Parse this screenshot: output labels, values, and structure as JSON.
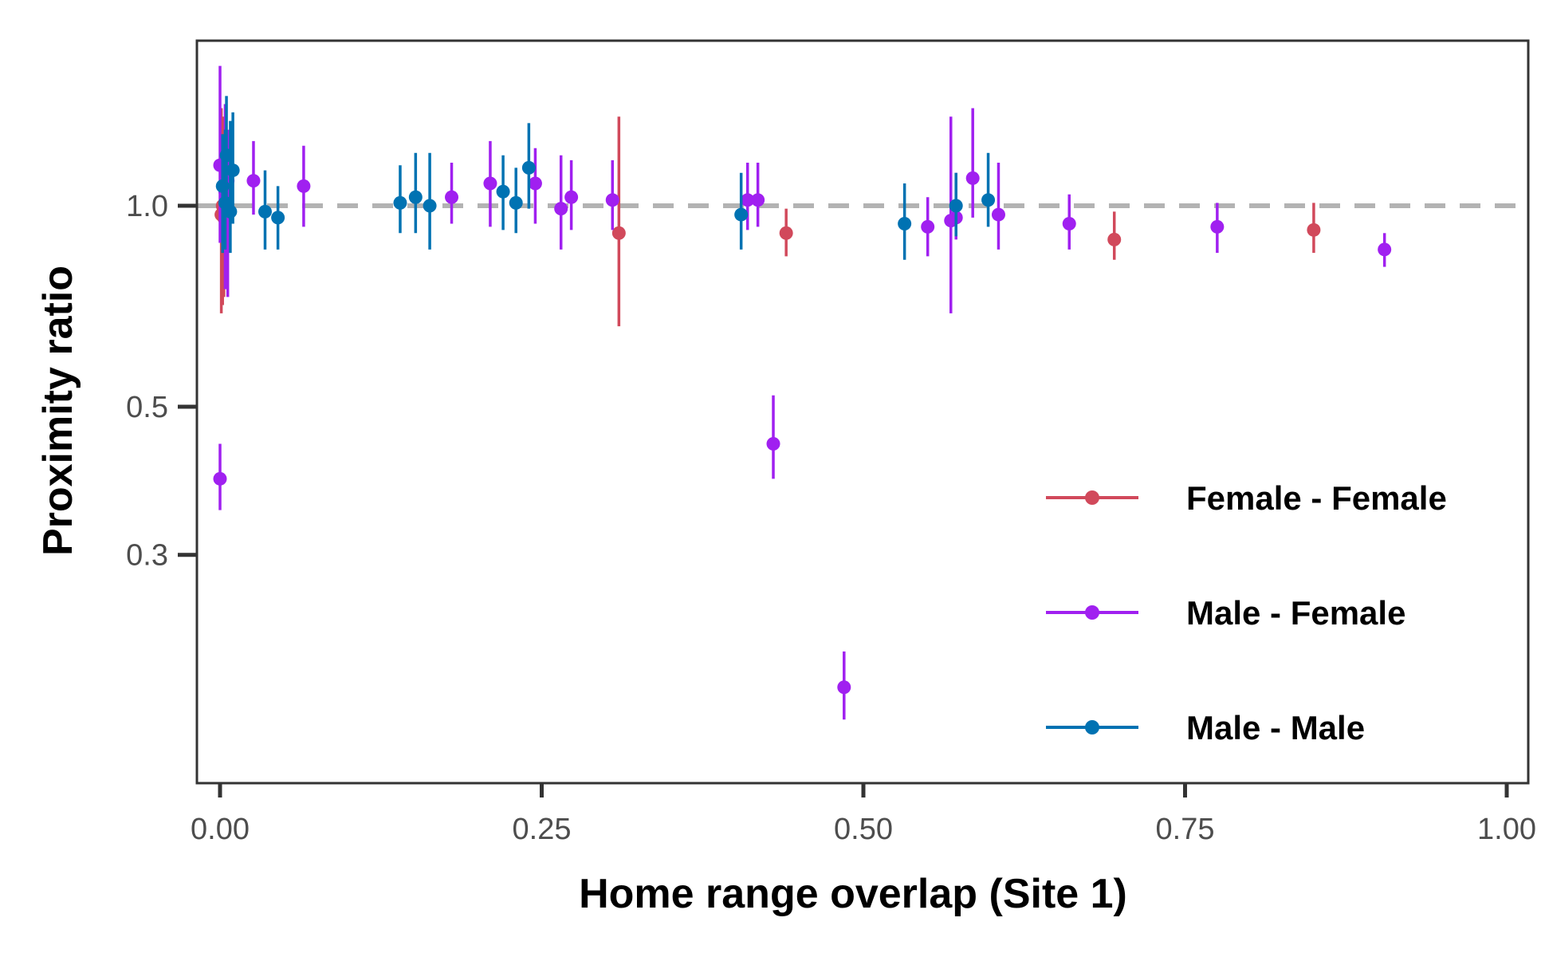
{
  "chart_data": {
    "type": "scatter",
    "xlabel": "Home range overlap (Site 1)",
    "ylabel": "Proximity ratio",
    "xlim": [
      0,
      1
    ],
    "y_scale": "log",
    "ylim": [
      0.15,
      1.85
    ],
    "x_ticks": [
      {
        "value": 0,
        "label": "0.00"
      },
      {
        "value": 0.25,
        "label": "0.25"
      },
      {
        "value": 0.5,
        "label": "0.50"
      },
      {
        "value": 0.75,
        "label": "0.75"
      },
      {
        "value": 1,
        "label": "1.00"
      }
    ],
    "y_ticks": [
      {
        "value": 1.0,
        "label": "1.0"
      },
      {
        "value": 0.5,
        "label": "0.5"
      },
      {
        "value": 0.3,
        "label": "0.3"
      }
    ],
    "reference_line": {
      "y": 1.0,
      "style": "dashed",
      "color": "#b3b3b3"
    },
    "grid": false,
    "legend_position": "bottom-right",
    "series": [
      {
        "name": "Female - Female",
        "color": "#d1495b",
        "points": [
          {
            "x": 0.001,
            "y": 0.97,
            "lo": 0.69,
            "hi": 1.4
          },
          {
            "x": 0.002,
            "y": 1.0,
            "lo": 0.71,
            "hi": 1.36
          },
          {
            "x": 0.003,
            "y": 0.96,
            "lo": 0.73,
            "hi": 1.3
          },
          {
            "x": 0.31,
            "y": 0.91,
            "lo": 0.66,
            "hi": 1.36
          },
          {
            "x": 0.44,
            "y": 0.91,
            "lo": 0.84,
            "hi": 0.99
          },
          {
            "x": 0.695,
            "y": 0.89,
            "lo": 0.83,
            "hi": 0.98
          },
          {
            "x": 0.85,
            "y": 0.92,
            "lo": 0.85,
            "hi": 1.01
          }
        ]
      },
      {
        "name": "Male - Female",
        "color": "#a020f0",
        "points": [
          {
            "x": 0.0,
            "y": 1.15,
            "lo": 0.88,
            "hi": 1.62
          },
          {
            "x": 0.0,
            "y": 0.39,
            "lo": 0.35,
            "hi": 0.44
          },
          {
            "x": 0.004,
            "y": 1.05,
            "lo": 0.75,
            "hi": 1.42
          },
          {
            "x": 0.006,
            "y": 1.09,
            "lo": 0.73,
            "hi": 1.3
          },
          {
            "x": 0.026,
            "y": 1.09,
            "lo": 0.97,
            "hi": 1.25
          },
          {
            "x": 0.065,
            "y": 1.07,
            "lo": 0.93,
            "hi": 1.23
          },
          {
            "x": 0.18,
            "y": 1.03,
            "lo": 0.94,
            "hi": 1.16
          },
          {
            "x": 0.21,
            "y": 1.08,
            "lo": 0.93,
            "hi": 1.25
          },
          {
            "x": 0.245,
            "y": 1.08,
            "lo": 0.94,
            "hi": 1.22
          },
          {
            "x": 0.265,
            "y": 0.99,
            "lo": 0.86,
            "hi": 1.19
          },
          {
            "x": 0.273,
            "y": 1.03,
            "lo": 0.92,
            "hi": 1.17
          },
          {
            "x": 0.305,
            "y": 1.02,
            "lo": 0.92,
            "hi": 1.17
          },
          {
            "x": 0.41,
            "y": 1.02,
            "lo": 0.92,
            "hi": 1.16
          },
          {
            "x": 0.418,
            "y": 1.02,
            "lo": 0.93,
            "hi": 1.16
          },
          {
            "x": 0.43,
            "y": 0.44,
            "lo": 0.39,
            "hi": 0.52
          },
          {
            "x": 0.485,
            "y": 0.19,
            "lo": 0.17,
            "hi": 0.215
          },
          {
            "x": 0.55,
            "y": 0.93,
            "lo": 0.84,
            "hi": 1.03
          },
          {
            "x": 0.568,
            "y": 0.95,
            "lo": 0.69,
            "hi": 1.36
          },
          {
            "x": 0.572,
            "y": 0.96,
            "lo": 0.89,
            "hi": 1.12
          },
          {
            "x": 0.585,
            "y": 1.1,
            "lo": 0.96,
            "hi": 1.4
          },
          {
            "x": 0.605,
            "y": 0.97,
            "lo": 0.86,
            "hi": 1.16
          },
          {
            "x": 0.66,
            "y": 0.94,
            "lo": 0.86,
            "hi": 1.04
          },
          {
            "x": 0.775,
            "y": 0.93,
            "lo": 0.85,
            "hi": 1.01
          },
          {
            "x": 0.905,
            "y": 0.86,
            "lo": 0.81,
            "hi": 0.91
          }
        ]
      },
      {
        "name": "Male - Male",
        "color": "#0072b2",
        "points": [
          {
            "x": 0.002,
            "y": 1.07,
            "lo": 0.85,
            "hi": 1.28
          },
          {
            "x": 0.004,
            "y": 1.01,
            "lo": 0.86,
            "hi": 1.3
          },
          {
            "x": 0.005,
            "y": 1.19,
            "lo": 0.97,
            "hi": 1.46
          },
          {
            "x": 0.008,
            "y": 0.98,
            "lo": 0.85,
            "hi": 1.34
          },
          {
            "x": 0.01,
            "y": 1.13,
            "lo": 0.94,
            "hi": 1.38
          },
          {
            "x": 0.035,
            "y": 0.98,
            "lo": 0.86,
            "hi": 1.13
          },
          {
            "x": 0.045,
            "y": 0.96,
            "lo": 0.86,
            "hi": 1.07
          },
          {
            "x": 0.14,
            "y": 1.01,
            "lo": 0.91,
            "hi": 1.15
          },
          {
            "x": 0.152,
            "y": 1.03,
            "lo": 0.91,
            "hi": 1.2
          },
          {
            "x": 0.163,
            "y": 1.0,
            "lo": 0.86,
            "hi": 1.2
          },
          {
            "x": 0.22,
            "y": 1.05,
            "lo": 0.92,
            "hi": 1.19
          },
          {
            "x": 0.23,
            "y": 1.01,
            "lo": 0.91,
            "hi": 1.14
          },
          {
            "x": 0.24,
            "y": 1.14,
            "lo": 0.99,
            "hi": 1.33
          },
          {
            "x": 0.405,
            "y": 0.97,
            "lo": 0.86,
            "hi": 1.12
          },
          {
            "x": 0.532,
            "y": 0.94,
            "lo": 0.83,
            "hi": 1.08
          },
          {
            "x": 0.572,
            "y": 1.0,
            "lo": 0.9,
            "hi": 1.12
          },
          {
            "x": 0.597,
            "y": 1.02,
            "lo": 0.93,
            "hi": 1.2
          }
        ]
      }
    ]
  }
}
